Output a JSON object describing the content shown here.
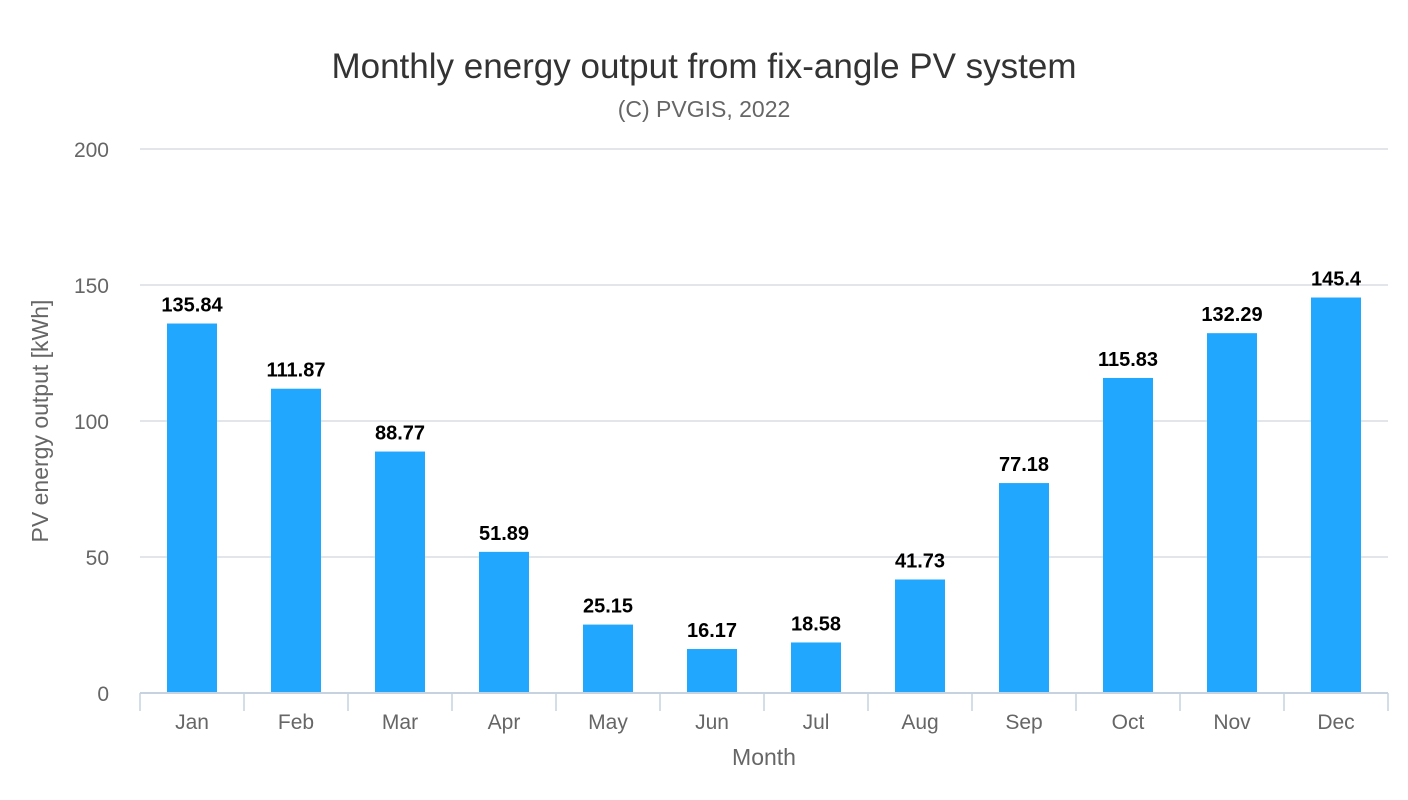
{
  "chart_data": {
    "type": "bar",
    "title": "Monthly energy output from fix-angle PV system",
    "subtitle": "(C) PVGIS, 2022",
    "xlabel": "Month",
    "ylabel": "PV energy output [kWh]",
    "categories": [
      "Jan",
      "Feb",
      "Mar",
      "Apr",
      "May",
      "Jun",
      "Jul",
      "Aug",
      "Sep",
      "Oct",
      "Nov",
      "Dec"
    ],
    "values": [
      135.84,
      111.87,
      88.77,
      51.89,
      25.15,
      16.17,
      18.58,
      41.73,
      77.18,
      115.83,
      132.29,
      145.4
    ],
    "data_labels": [
      "135.84",
      "111.87",
      "88.77",
      "51.89",
      "25.15",
      "16.17",
      "18.58",
      "41.73",
      "77.18",
      "115.83",
      "132.29",
      "145.4"
    ],
    "ylim": [
      0,
      200
    ],
    "yticks": [
      0,
      50,
      100,
      150,
      200
    ],
    "grid": true,
    "bar_color": "#22a7ff"
  }
}
